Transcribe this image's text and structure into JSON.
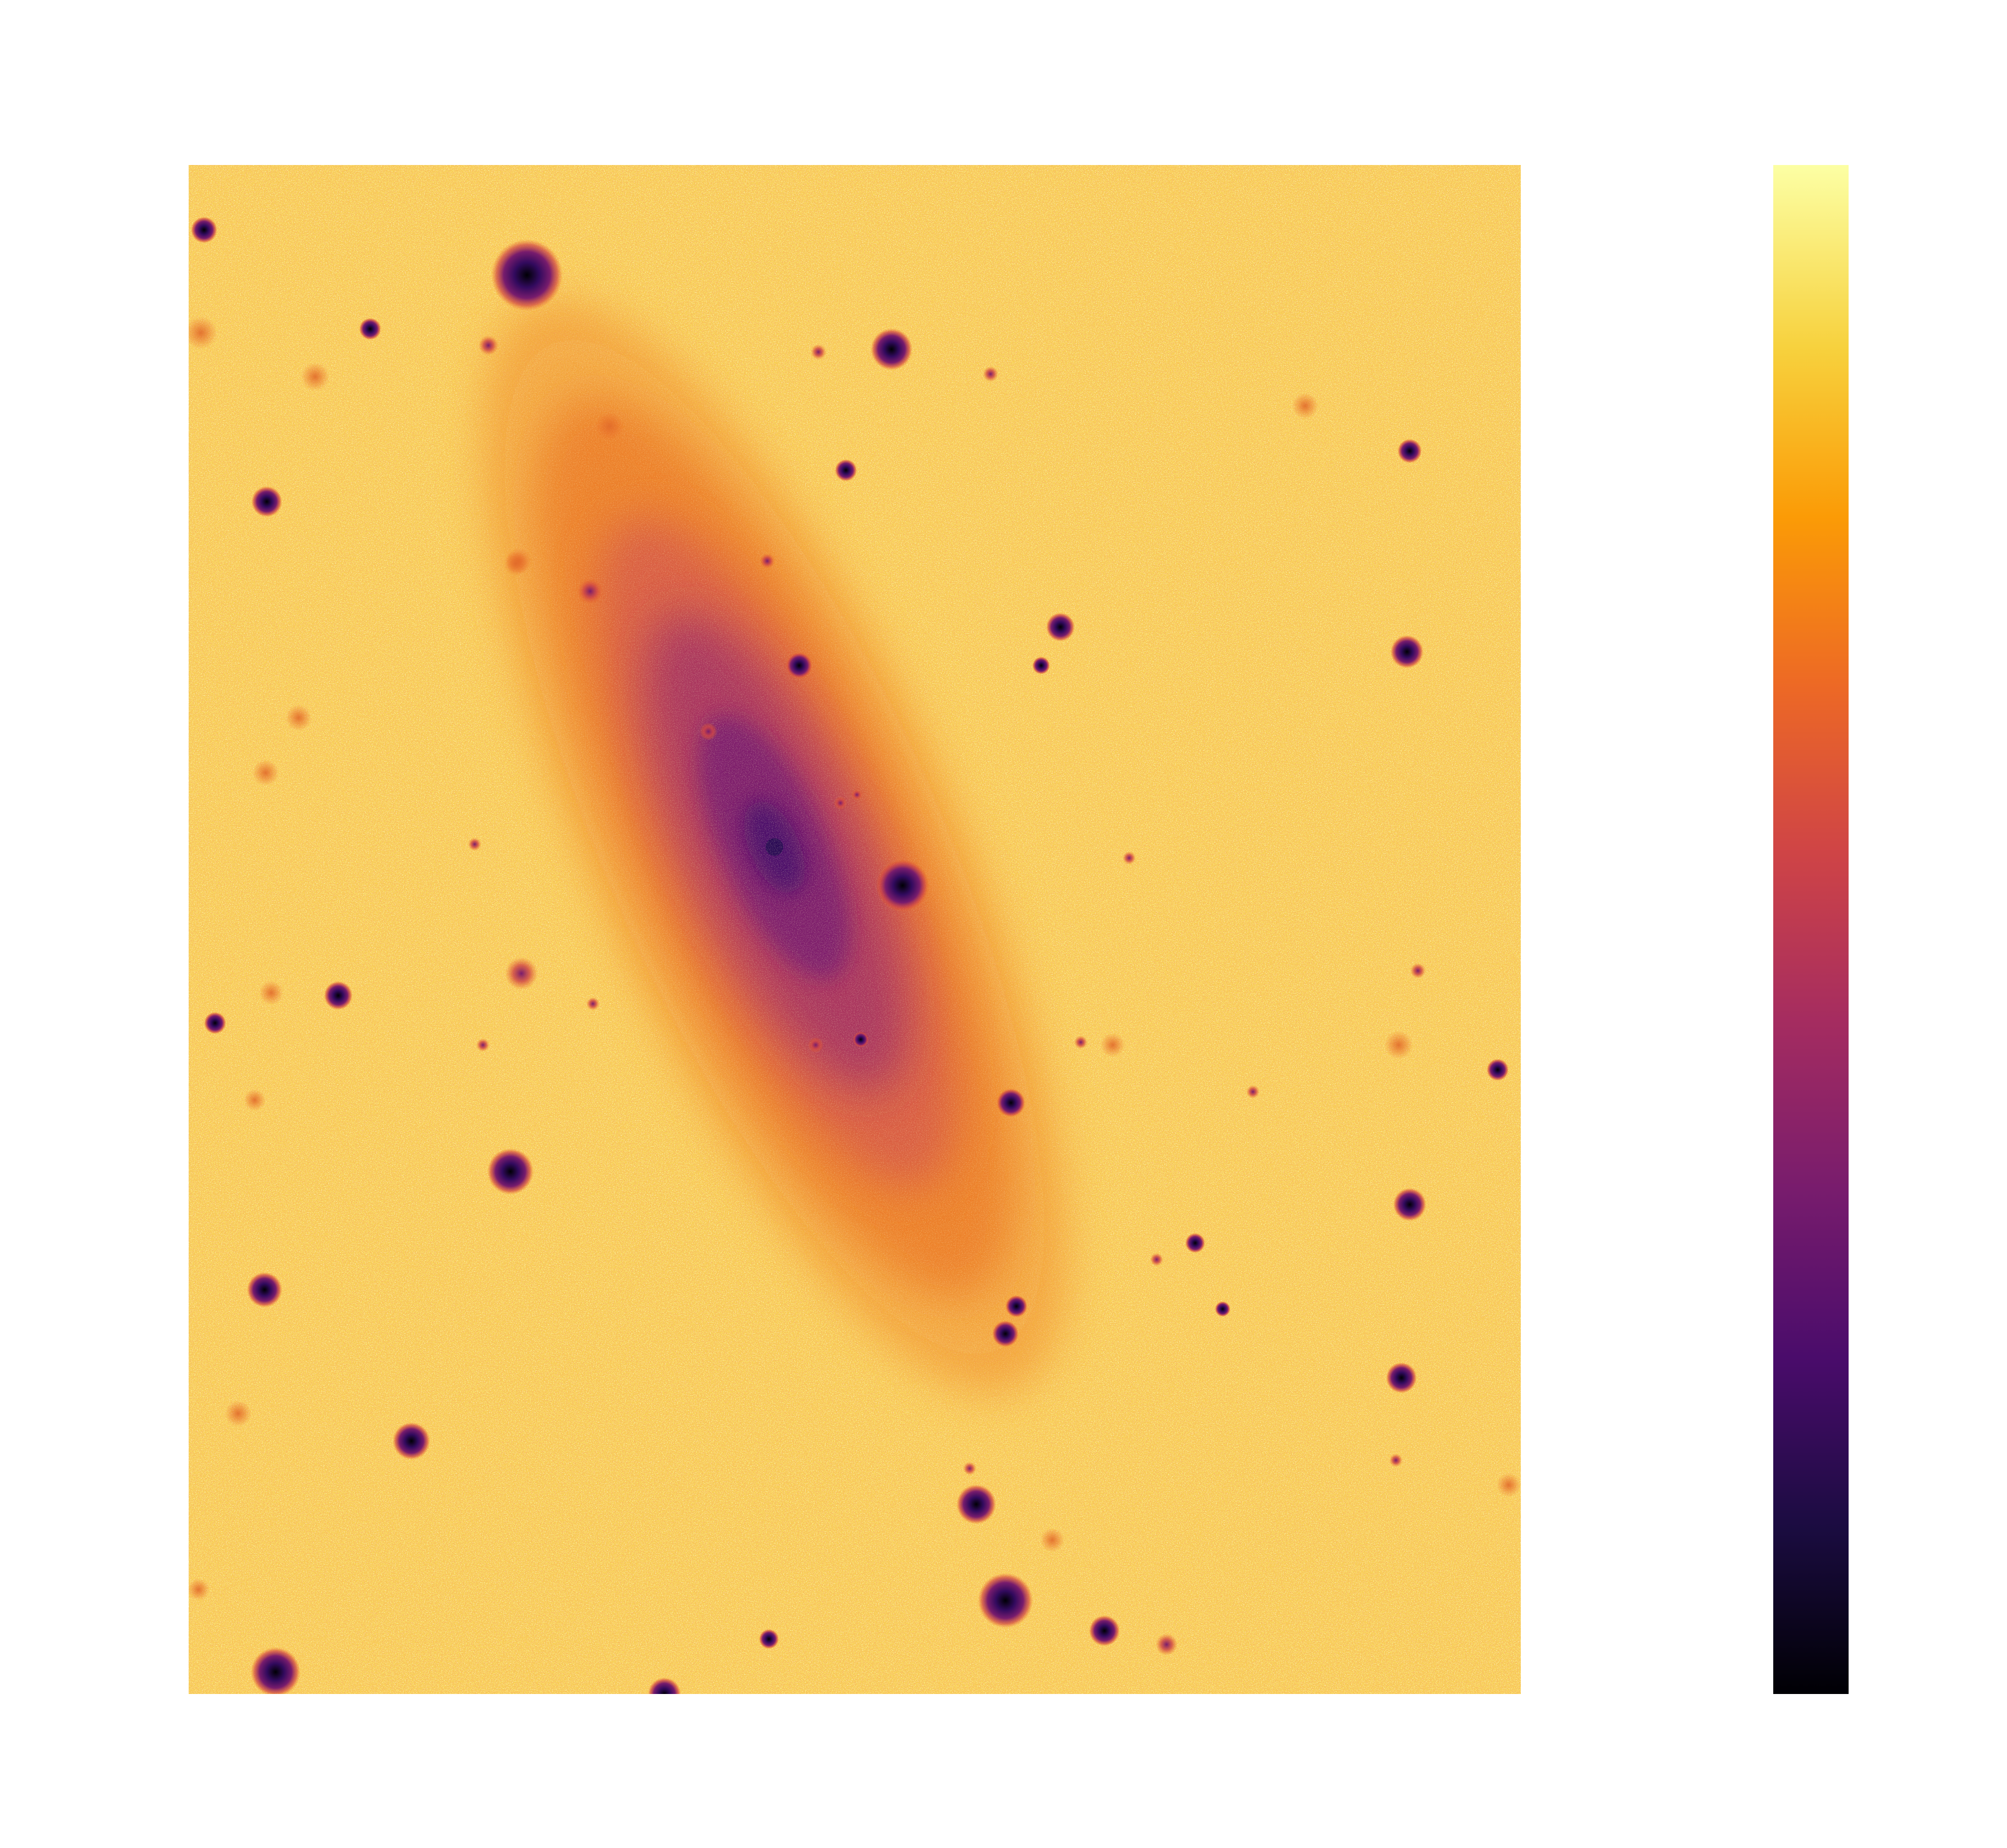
{
  "image": {
    "subject": "galaxy-field",
    "colormap": "inferno",
    "colormap_stops": [
      "#000004",
      "#1b0c41",
      "#4a0c6b",
      "#781c6d",
      "#a52c60",
      "#cf4446",
      "#ed6925",
      "#fb9b06",
      "#f7d13d",
      "#fcffa4"
    ],
    "background_colors": [
      "#f7c04a",
      "#fbe06a",
      "#fdf28c",
      "#f29a2c",
      "#e97a20"
    ],
    "galaxy_colors": [
      "#e9741c",
      "#cf4446",
      "#a52c60",
      "#781c6d",
      "#4a0c6b"
    ],
    "star_colors": [
      "#000004",
      "#320a5e",
      "#781c6d",
      "#cf4446"
    ]
  },
  "colorbar": {
    "orientation": "vertical",
    "low_color": "#000004",
    "high_color": "#fcffa4"
  }
}
